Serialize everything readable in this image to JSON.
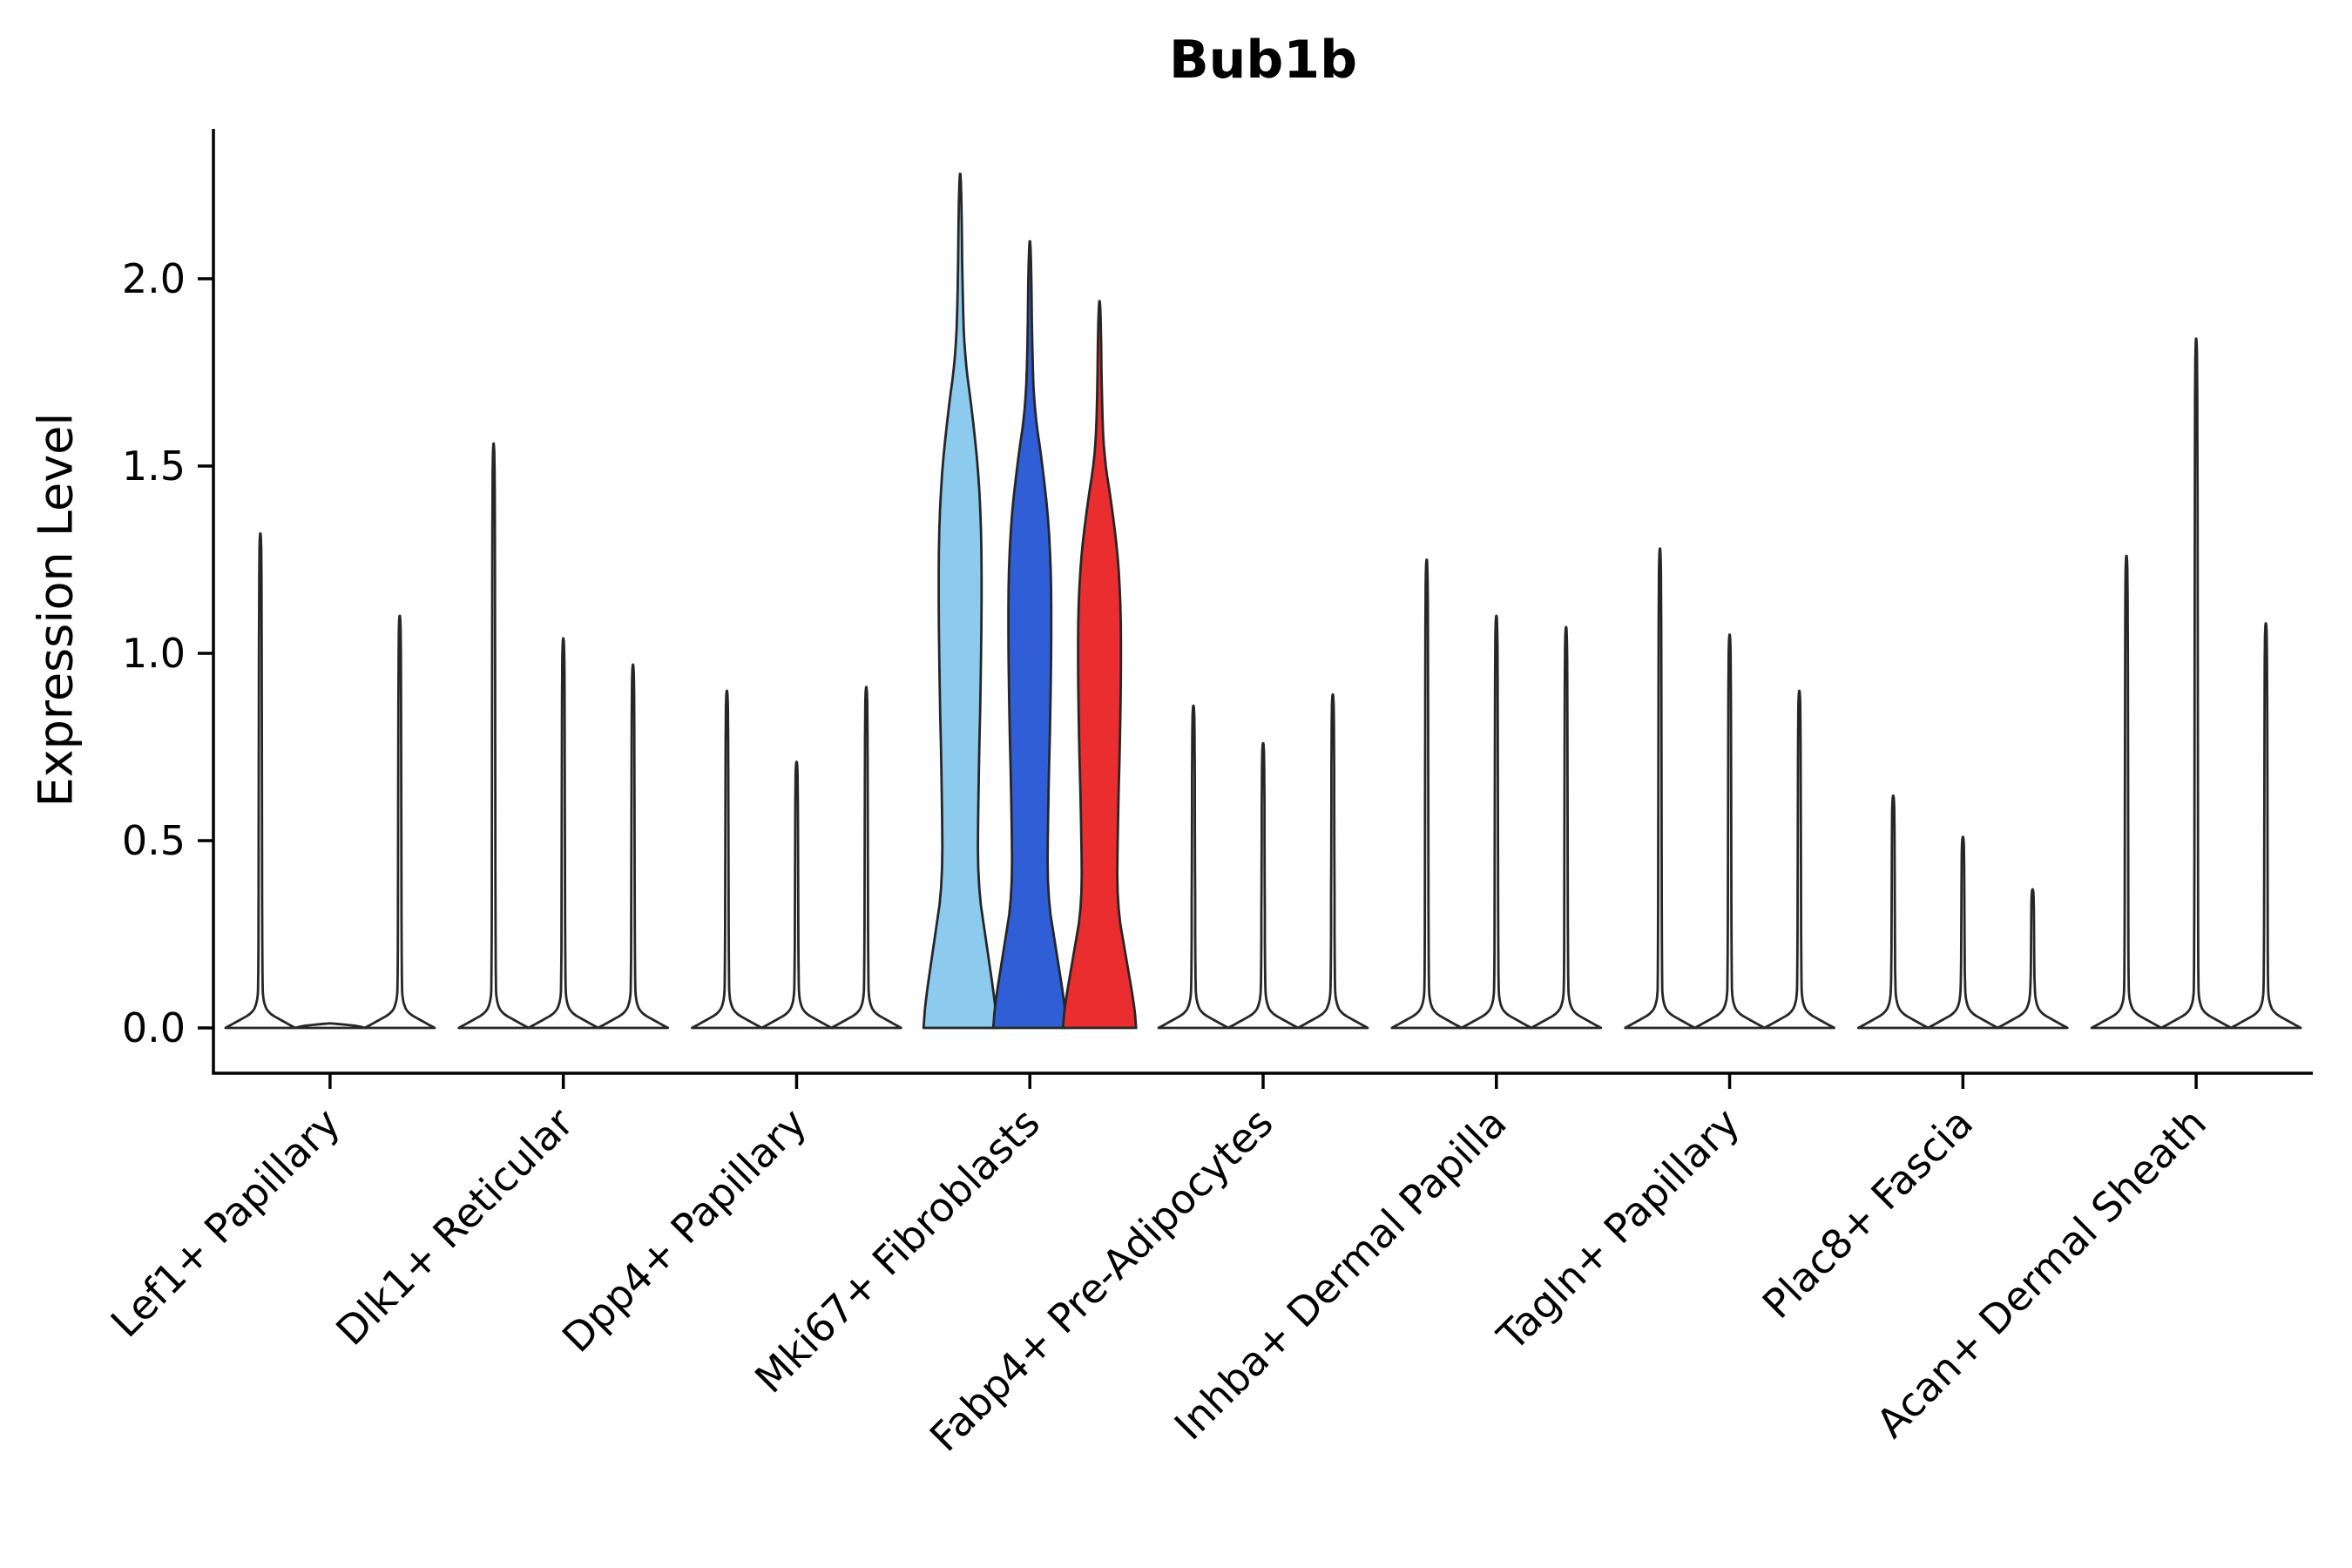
{
  "chart_data": {
    "type": "violin",
    "title": "Bub1b",
    "ylabel": "Expression Level",
    "xlabel": "",
    "ylim": [
      0,
      2.4
    ],
    "yticks": [
      0.0,
      0.5,
      1.0,
      1.5,
      2.0
    ],
    "grid": false,
    "legend": null,
    "violins_per_category": 3,
    "axis_color": "#000000",
    "outline_color": "#262626",
    "highlight_colors": [
      "#8DCBEE",
      "#2F5ED6",
      "#EA2D2E"
    ],
    "categories": [
      "Lef1+ Papillary",
      "Dlk1+ Reticular",
      "Dpp4+ Papillary",
      "Mki67+ Fibroblasts",
      "Fabp4+ Pre-Adipocytes",
      "Inhba+ Dermal Papilla",
      "Tagln+ Papillary",
      "Plac8+ Fascia",
      "Acan+ Dermal Sheath"
    ],
    "groups": [
      {
        "category": "Lef1+ Papillary",
        "violins": [
          {
            "max": 1.32,
            "fill": "#FFFFFF",
            "filled": false
          },
          {
            "max": 0.0,
            "fill": "#FFFFFF",
            "filled": false
          },
          {
            "max": 1.1,
            "fill": "#FFFFFF",
            "filled": false
          }
        ]
      },
      {
        "category": "Dlk1+ Reticular",
        "violins": [
          {
            "max": 1.56,
            "fill": "#FFFFFF",
            "filled": false
          },
          {
            "max": 1.04,
            "fill": "#FFFFFF",
            "filled": false
          },
          {
            "max": 0.97,
            "fill": "#FFFFFF",
            "filled": false
          }
        ]
      },
      {
        "category": "Dpp4+ Papillary",
        "violins": [
          {
            "max": 0.9,
            "fill": "#FFFFFF",
            "filled": false
          },
          {
            "max": 0.71,
            "fill": "#FFFFFF",
            "filled": false
          },
          {
            "max": 0.91,
            "fill": "#FFFFFF",
            "filled": false
          }
        ]
      },
      {
        "category": "Mki67+ Fibroblasts",
        "violins": [
          {
            "max": 2.28,
            "fill": "#8DCBEE",
            "filled": true
          },
          {
            "max": 2.1,
            "fill": "#2F5ED6",
            "filled": true
          },
          {
            "max": 1.94,
            "fill": "#EA2D2E",
            "filled": true
          }
        ]
      },
      {
        "category": "Fabp4+ Pre-Adipocytes",
        "violins": [
          {
            "max": 0.86,
            "fill": "#FFFFFF",
            "filled": false
          },
          {
            "max": 0.76,
            "fill": "#FFFFFF",
            "filled": false
          },
          {
            "max": 0.89,
            "fill": "#FFFFFF",
            "filled": false
          }
        ]
      },
      {
        "category": "Inhba+ Dermal Papilla",
        "violins": [
          {
            "max": 1.25,
            "fill": "#FFFFFF",
            "filled": false
          },
          {
            "max": 1.1,
            "fill": "#FFFFFF",
            "filled": false
          },
          {
            "max": 1.07,
            "fill": "#FFFFFF",
            "filled": false
          }
        ]
      },
      {
        "category": "Tagln+ Papillary",
        "violins": [
          {
            "max": 1.28,
            "fill": "#FFFFFF",
            "filled": false
          },
          {
            "max": 1.05,
            "fill": "#FFFFFF",
            "filled": false
          },
          {
            "max": 0.9,
            "fill": "#FFFFFF",
            "filled": false
          }
        ]
      },
      {
        "category": "Plac8+ Fascia",
        "violins": [
          {
            "max": 0.62,
            "fill": "#FFFFFF",
            "filled": false
          },
          {
            "max": 0.51,
            "fill": "#FFFFFF",
            "filled": false
          },
          {
            "max": 0.37,
            "fill": "#FFFFFF",
            "filled": false
          }
        ]
      },
      {
        "category": "Acan+ Dermal Sheath",
        "violins": [
          {
            "max": 1.26,
            "fill": "#FFFFFF",
            "filled": false
          },
          {
            "max": 1.84,
            "fill": "#FFFFFF",
            "filled": false
          },
          {
            "max": 1.08,
            "fill": "#FFFFFF",
            "filled": false
          }
        ]
      }
    ]
  }
}
